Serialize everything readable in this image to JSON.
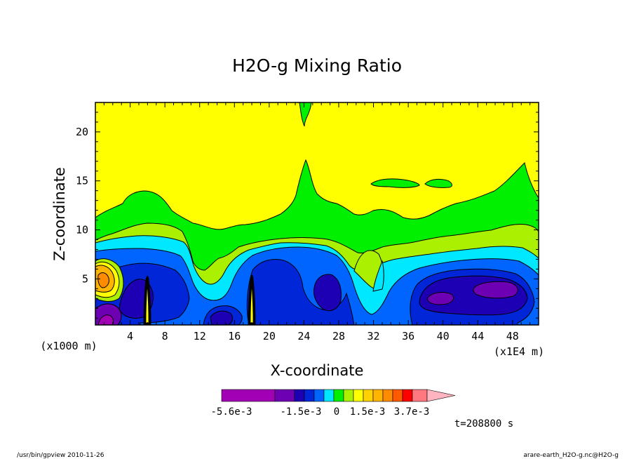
{
  "chart_data": {
    "type": "heatmap",
    "title": "H2O-g Mixing Ratio",
    "xlabel": "X-coordinate",
    "ylabel": "Z-coordinate",
    "x_unit_label": "(x1E4 m)",
    "y_unit_label": "(x1000 m)",
    "x_ticks": [
      4,
      8,
      12,
      16,
      20,
      24,
      28,
      32,
      36,
      40,
      44,
      48
    ],
    "x_tick_labels": [
      "4",
      "8",
      "12",
      "16",
      "20",
      "24",
      "28",
      "32",
      "36",
      "40",
      "44",
      "48"
    ],
    "y_ticks": [
      5,
      10,
      15,
      20
    ],
    "y_tick_labels": [
      "5",
      "10",
      "15",
      "20"
    ],
    "xlim": [
      0,
      51
    ],
    "ylim": [
      0.3,
      23
    ],
    "time_label": "t=208800 s",
    "colorbar": {
      "colors": [
        "#a200b4",
        "#6e00b4",
        "#1e00b4",
        "#0026d8",
        "#0064ff",
        "#00e8ff",
        "#00f000",
        "#aaf000",
        "#ffff00",
        "#ffd200",
        "#ffb400",
        "#ff8c00",
        "#ff5a00",
        "#ff0000",
        "#ff7880",
        "#ffb4c0"
      ],
      "tick_labels": [
        "-5.6e-3",
        "-1.5e-3",
        "0",
        "1.5e-3",
        "3.7e-3"
      ]
    },
    "levels": [
      {
        "name": "bg",
        "color": "#ffff00"
      },
      {
        "name": "green",
        "color": "#00f000"
      },
      {
        "name": "lightgreen",
        "color": "#aaf000"
      },
      {
        "name": "cyan",
        "color": "#00e8ff"
      },
      {
        "name": "blue",
        "color": "#0064ff"
      },
      {
        "name": "darkblue",
        "color": "#0026d8"
      },
      {
        "name": "navy",
        "color": "#1e00b4"
      },
      {
        "name": "purple",
        "color": "#6e00b4"
      },
      {
        "name": "magenta",
        "color": "#a200b4"
      },
      {
        "name": "orange",
        "color": "#ffb400"
      },
      {
        "name": "darkorange",
        "color": "#ff8c00"
      }
    ]
  },
  "footer": {
    "left": "/usr/bin/gpview  2010-11-26",
    "right": "arare-earth_H2O-g.nc@H2O-g"
  }
}
